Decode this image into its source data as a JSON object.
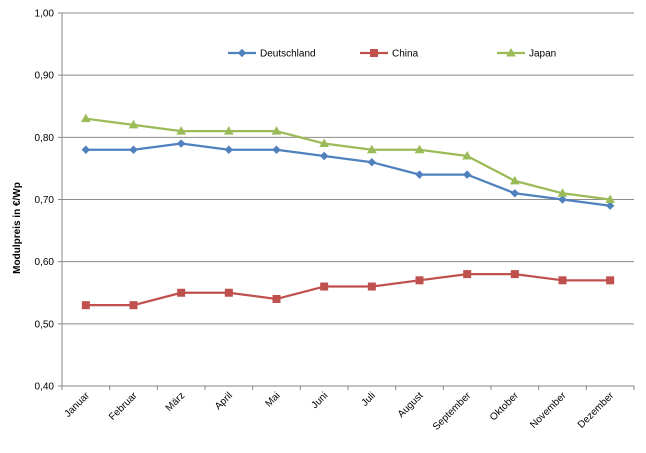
{
  "chart_data": {
    "type": "line",
    "title": "",
    "xlabel": "",
    "ylabel": "Modulpreis in €/Wp",
    "categories": [
      "Januar",
      "Februar",
      "März",
      "April",
      "Mai",
      "Juni",
      "Juli",
      "August",
      "September",
      "Oktober",
      "November",
      "Dezember"
    ],
    "y_ticks": [
      "0,40",
      "0,50",
      "0,60",
      "0,70",
      "0,80",
      "0,90",
      "1,00"
    ],
    "ylim": [
      0.4,
      1.0
    ],
    "grid": true,
    "legend_position": "top",
    "series": [
      {
        "name": "Deutschland",
        "color": "#4F81BD",
        "marker": "diamond",
        "values": [
          0.78,
          0.78,
          0.79,
          0.78,
          0.78,
          0.77,
          0.76,
          0.74,
          0.74,
          0.71,
          0.7,
          0.69
        ]
      },
      {
        "name": "China",
        "color": "#C0504D",
        "marker": "square",
        "values": [
          0.53,
          0.53,
          0.55,
          0.55,
          0.54,
          0.56,
          0.56,
          0.57,
          0.58,
          0.58,
          0.57,
          0.57
        ]
      },
      {
        "name": "Japan",
        "color": "#9BBB59",
        "marker": "triangle",
        "values": [
          0.83,
          0.82,
          0.81,
          0.81,
          0.81,
          0.79,
          0.78,
          0.78,
          0.77,
          0.73,
          0.71,
          0.7
        ]
      }
    ]
  }
}
